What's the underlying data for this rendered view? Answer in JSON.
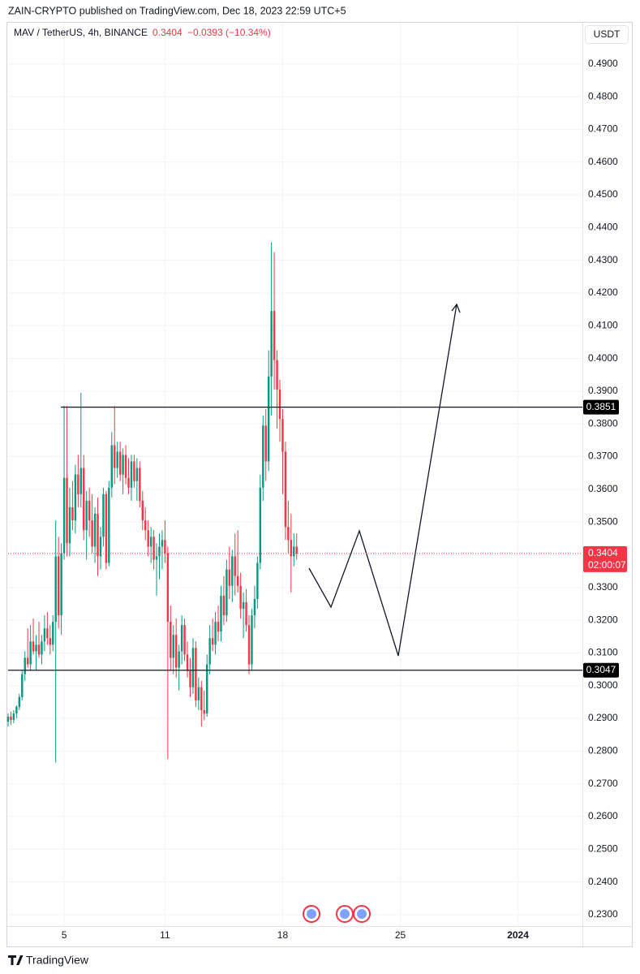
{
  "header": {
    "publisher": "ZAIN-CRYPTO published on TradingView.com, Dec 18, 2023 22:59 UTC+5",
    "symbol": "MAV / TetherUS, 4h, BINANCE",
    "price": "0.3404",
    "change": "−0.0393 (−10.34%)",
    "currency": "USDT"
  },
  "footer": "TradingView",
  "chart_data": {
    "type": "candlestick",
    "up_color": "#089981",
    "down_color": "#f23645",
    "grid": true,
    "xlim": [
      0,
      205
    ],
    "xticks": [
      {
        "value": 20,
        "label": "5"
      },
      {
        "value": 56,
        "label": "11"
      },
      {
        "value": 98,
        "label": "18"
      },
      {
        "value": 140,
        "label": "25"
      },
      {
        "value": 182,
        "label": "2024"
      }
    ],
    "ylim": [
      0.2265,
      0.5026
    ],
    "yticks": [
      {
        "value": 0.23,
        "label": "0.2300"
      },
      {
        "value": 0.24,
        "label": "0.2400"
      },
      {
        "value": 0.25,
        "label": "0.2500"
      },
      {
        "value": 0.26,
        "label": "0.2600"
      },
      {
        "value": 0.27,
        "label": "0.2700"
      },
      {
        "value": 0.28,
        "label": "0.2800"
      },
      {
        "value": 0.29,
        "label": "0.2900"
      },
      {
        "value": 0.3,
        "label": "0.3000"
      },
      {
        "value": 0.31,
        "label": "0.3100"
      },
      {
        "value": 0.32,
        "label": "0.3200"
      },
      {
        "value": 0.33,
        "label": "0.3300"
      },
      {
        "value": 0.34,
        "label": "0.3400"
      },
      {
        "value": 0.35,
        "label": "0.3500"
      },
      {
        "value": 0.36,
        "label": "0.3600"
      },
      {
        "value": 0.37,
        "label": "0.3700"
      },
      {
        "value": 0.38,
        "label": "0.3800"
      },
      {
        "value": 0.39,
        "label": "0.3900"
      },
      {
        "value": 0.4,
        "label": "0.4000"
      },
      {
        "value": 0.41,
        "label": "0.4100"
      },
      {
        "value": 0.42,
        "label": "0.4200"
      },
      {
        "value": 0.43,
        "label": "0.4300"
      },
      {
        "value": 0.44,
        "label": "0.4400"
      },
      {
        "value": 0.45,
        "label": "0.4500"
      },
      {
        "value": 0.46,
        "label": "0.4600"
      },
      {
        "value": 0.47,
        "label": "0.4700"
      },
      {
        "value": 0.48,
        "label": "0.4800"
      },
      {
        "value": 0.49,
        "label": "0.4900"
      }
    ],
    "levels": [
      {
        "value": 0.3851,
        "label": "0.3851"
      },
      {
        "value": 0.3047,
        "label": "0.3047"
      }
    ],
    "last_price": {
      "value": 0.3404,
      "label": "0.3404",
      "countdown": "02:00:07"
    },
    "candles": [
      [
        0.289,
        0.2915,
        0.2875,
        0.2905
      ],
      [
        0.2905,
        0.292,
        0.288,
        0.2895
      ],
      [
        0.2895,
        0.2925,
        0.2885,
        0.2915
      ],
      [
        0.2915,
        0.294,
        0.29,
        0.2935
      ],
      [
        0.2935,
        0.2975,
        0.2925,
        0.2965
      ],
      [
        0.2965,
        0.3045,
        0.2955,
        0.3035
      ],
      [
        0.3035,
        0.3105,
        0.3015,
        0.3085
      ],
      [
        0.3085,
        0.3175,
        0.3055,
        0.3065
      ],
      [
        0.3065,
        0.3185,
        0.3045,
        0.3135
      ],
      [
        0.3135,
        0.3205,
        0.3095,
        0.3105
      ],
      [
        0.3105,
        0.3155,
        0.3045,
        0.3125
      ],
      [
        0.3125,
        0.3195,
        0.3085,
        0.3095
      ],
      [
        0.3095,
        0.3155,
        0.3065,
        0.3135
      ],
      [
        0.3135,
        0.3215,
        0.3105,
        0.3175
      ],
      [
        0.3175,
        0.3225,
        0.3125,
        0.3145
      ],
      [
        0.3145,
        0.3185,
        0.3095,
        0.3125
      ],
      [
        0.3125,
        0.3215,
        0.3105,
        0.3195
      ],
      [
        0.3195,
        0.3505,
        0.2765,
        0.3395
      ],
      [
        0.3395,
        0.3455,
        0.3175,
        0.3215
      ],
      [
        0.3215,
        0.3435,
        0.3155,
        0.3405
      ],
      [
        0.3405,
        0.3855,
        0.3385,
        0.3635
      ],
      [
        0.3635,
        0.3855,
        0.3395,
        0.3435
      ],
      [
        0.3435,
        0.3605,
        0.3395,
        0.3545
      ],
      [
        0.3545,
        0.3625,
        0.3475,
        0.3505
      ],
      [
        0.3505,
        0.3675,
        0.3465,
        0.3645
      ],
      [
        0.3645,
        0.3705,
        0.3545,
        0.3585
      ],
      [
        0.3585,
        0.3895,
        0.3545,
        0.3665
      ],
      [
        0.3665,
        0.3705,
        0.3445,
        0.3475
      ],
      [
        0.3475,
        0.3595,
        0.3385,
        0.3565
      ],
      [
        0.3565,
        0.3605,
        0.3455,
        0.3505
      ],
      [
        0.3505,
        0.3585,
        0.3405,
        0.3425
      ],
      [
        0.3425,
        0.3545,
        0.3375,
        0.3525
      ],
      [
        0.3525,
        0.3575,
        0.3335,
        0.3395
      ],
      [
        0.3395,
        0.3485,
        0.3355,
        0.3455
      ],
      [
        0.3455,
        0.3605,
        0.3425,
        0.3585
      ],
      [
        0.3585,
        0.3595,
        0.3355,
        0.3375
      ],
      [
        0.3375,
        0.3625,
        0.3365,
        0.3605
      ],
      [
        0.3605,
        0.3775,
        0.3575,
        0.3735
      ],
      [
        0.3735,
        0.3855,
        0.3615,
        0.3665
      ],
      [
        0.3665,
        0.3745,
        0.3635,
        0.3715
      ],
      [
        0.3715,
        0.3745,
        0.3625,
        0.3645
      ],
      [
        0.3645,
        0.3725,
        0.3585,
        0.3705
      ],
      [
        0.3705,
        0.3735,
        0.3615,
        0.3635
      ],
      [
        0.3635,
        0.3695,
        0.3585,
        0.3605
      ],
      [
        0.3605,
        0.3705,
        0.3565,
        0.3685
      ],
      [
        0.3685,
        0.3705,
        0.3605,
        0.3625
      ],
      [
        0.3625,
        0.3695,
        0.3565,
        0.3665
      ],
      [
        0.3665,
        0.3685,
        0.3545,
        0.3565
      ],
      [
        0.3565,
        0.3595,
        0.3475,
        0.3505
      ],
      [
        0.3505,
        0.3545,
        0.3445,
        0.3475
      ],
      [
        0.3475,
        0.3505,
        0.3395,
        0.3425
      ],
      [
        0.3425,
        0.3485,
        0.3375,
        0.3455
      ],
      [
        0.3455,
        0.3475,
        0.3355,
        0.3385
      ],
      [
        0.3385,
        0.3435,
        0.3275,
        0.3395
      ],
      [
        0.3395,
        0.3465,
        0.3325,
        0.3425
      ],
      [
        0.3425,
        0.3475,
        0.3355,
        0.3445
      ],
      [
        0.3445,
        0.3505,
        0.3375,
        0.3405
      ],
      [
        0.3405,
        0.3425,
        0.2775,
        0.3195
      ],
      [
        0.3195,
        0.3245,
        0.3045,
        0.3085
      ],
      [
        0.3085,
        0.3185,
        0.3035,
        0.3155
      ],
      [
        0.3155,
        0.3205,
        0.3025,
        0.3055
      ],
      [
        0.3055,
        0.3125,
        0.2985,
        0.3105
      ],
      [
        0.3105,
        0.3215,
        0.3065,
        0.3185
      ],
      [
        0.3185,
        0.3205,
        0.3075,
        0.3095
      ],
      [
        0.3095,
        0.3135,
        0.3025,
        0.3045
      ],
      [
        0.3045,
        0.3085,
        0.2965,
        0.2995
      ],
      [
        0.2995,
        0.3145,
        0.2975,
        0.3115
      ],
      [
        0.3115,
        0.3135,
        0.2935,
        0.2955
      ],
      [
        0.2955,
        0.3025,
        0.2925,
        0.2995
      ],
      [
        0.2995,
        0.3015,
        0.2875,
        0.2925
      ],
      [
        0.2925,
        0.2985,
        0.2895,
        0.2915
      ],
      [
        0.2915,
        0.3095,
        0.2905,
        0.3065
      ],
      [
        0.3065,
        0.3185,
        0.3035,
        0.3145
      ],
      [
        0.3145,
        0.3205,
        0.3105,
        0.3125
      ],
      [
        0.3125,
        0.3225,
        0.3095,
        0.3195
      ],
      [
        0.3195,
        0.3245,
        0.3135,
        0.3165
      ],
      [
        0.3165,
        0.3305,
        0.3135,
        0.3275
      ],
      [
        0.3275,
        0.3335,
        0.3185,
        0.3215
      ],
      [
        0.3215,
        0.3385,
        0.3195,
        0.3355
      ],
      [
        0.3355,
        0.3425,
        0.3265,
        0.3305
      ],
      [
        0.3305,
        0.3415,
        0.3255,
        0.3395
      ],
      [
        0.3395,
        0.3465,
        0.3275,
        0.3335
      ],
      [
        0.3335,
        0.3475,
        0.3285,
        0.3305
      ],
      [
        0.3305,
        0.3345,
        0.3205,
        0.3235
      ],
      [
        0.3235,
        0.3285,
        0.3145,
        0.3255
      ],
      [
        0.3255,
        0.3295,
        0.3165,
        0.3185
      ],
      [
        0.3185,
        0.3215,
        0.3035,
        0.3065
      ],
      [
        0.3065,
        0.3235,
        0.3045,
        0.3215
      ],
      [
        0.3215,
        0.3305,
        0.3175,
        0.3265
      ],
      [
        0.3265,
        0.3395,
        0.3235,
        0.3375
      ],
      [
        0.3375,
        0.3645,
        0.3355,
        0.3605
      ],
      [
        0.3605,
        0.3825,
        0.3565,
        0.3795
      ],
      [
        0.3795,
        0.3845,
        0.3625,
        0.3685
      ],
      [
        0.3685,
        0.4025,
        0.3655,
        0.3945
      ],
      [
        0.3945,
        0.4355,
        0.3825,
        0.4145
      ],
      [
        0.4145,
        0.4325,
        0.3905,
        0.3995
      ],
      [
        0.3995,
        0.4025,
        0.3785,
        0.3905
      ],
      [
        0.3905,
        0.3935,
        0.3745,
        0.3815
      ],
      [
        0.3815,
        0.3845,
        0.3585,
        0.3715
      ],
      [
        0.3715,
        0.3745,
        0.3445,
        0.3485
      ],
      [
        0.3485,
        0.3565,
        0.3405,
        0.3445
      ],
      [
        0.3445,
        0.3525,
        0.3285,
        0.3395
      ],
      [
        0.3395,
        0.3465,
        0.3365,
        0.3425
      ],
      [
        0.3425,
        0.3465,
        0.3385,
        0.3404
      ]
    ]
  }
}
